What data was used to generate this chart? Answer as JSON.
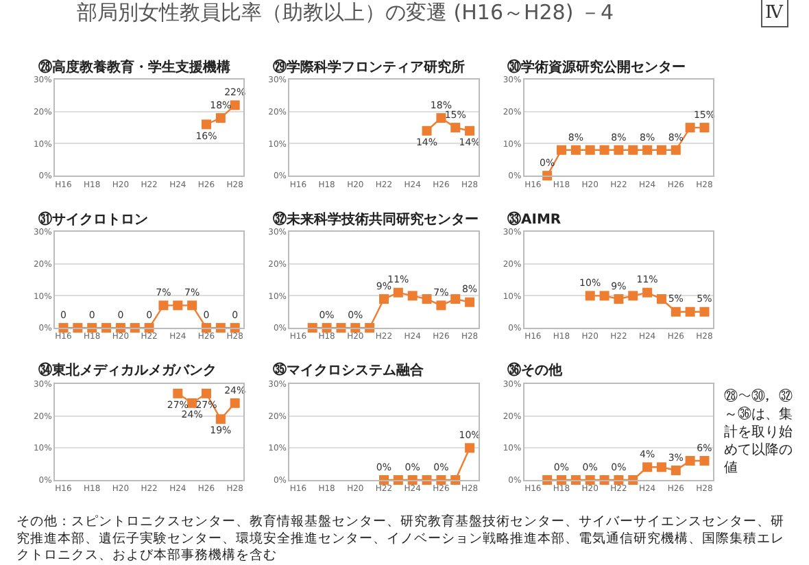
{
  "chart_data": [
    {
      "type": "line",
      "title": "㉘高度教養教育・学生支援機構",
      "categories": [
        "H16",
        null,
        "H18",
        null,
        "H20",
        null,
        "H22",
        null,
        "H24",
        null,
        "H26",
        null,
        "H28"
      ],
      "series": [
        {
          "color": "#ed7d31",
          "values": [
            null,
            null,
            null,
            null,
            null,
            null,
            null,
            null,
            null,
            null,
            16,
            18,
            22
          ],
          "value_labels": [
            null,
            null,
            null,
            null,
            null,
            null,
            null,
            null,
            null,
            null,
            "16%",
            "18%",
            "22%"
          ]
        }
      ],
      "ylim": [
        0,
        30
      ],
      "yticks": [
        {
          "value": 0,
          "label": "0%"
        },
        {
          "value": 10,
          "label": "10%"
        },
        {
          "value": 20,
          "label": "20%"
        },
        {
          "value": 30,
          "label": "30%"
        }
      ],
      "grid": "y",
      "marker": "square",
      "line_style": "solid"
    },
    {
      "type": "line",
      "title": "㉙学際科学フロンティア研究所",
      "categories": [
        "H16",
        null,
        "H18",
        null,
        "H20",
        null,
        "H22",
        null,
        "H24",
        null,
        "H26",
        null,
        "H28"
      ],
      "series": [
        {
          "color": "#ed7d31",
          "values": [
            null,
            null,
            null,
            null,
            null,
            null,
            null,
            null,
            null,
            14,
            18,
            15,
            14
          ],
          "value_labels": [
            null,
            null,
            null,
            null,
            null,
            null,
            null,
            null,
            null,
            "14%",
            "18%",
            "15%",
            "14%"
          ]
        }
      ],
      "ylim": [
        0,
        30
      ],
      "yticks": [
        {
          "value": 0,
          "label": "0%"
        },
        {
          "value": 10,
          "label": "10%"
        },
        {
          "value": 20,
          "label": "20%"
        },
        {
          "value": 30,
          "label": "30%"
        }
      ],
      "grid": "y",
      "marker": "square",
      "line_style": "solid"
    },
    {
      "type": "line",
      "title": "㉚学術資源研究公開センター",
      "categories": [
        "H16",
        null,
        "H18",
        null,
        "H20",
        null,
        "H22",
        null,
        "H24",
        null,
        "H26",
        null,
        "H28"
      ],
      "series": [
        {
          "color": "#ed7d31",
          "values": [
            null,
            0,
            8,
            8,
            8,
            8,
            8,
            8,
            8,
            8,
            8,
            15,
            15
          ],
          "value_labels": [
            null,
            "0%",
            null,
            "8%",
            null,
            null,
            "8%",
            null,
            "8%",
            null,
            "8%",
            null,
            "15%"
          ]
        }
      ],
      "ylim": [
        0,
        30
      ],
      "yticks": [
        {
          "value": 0,
          "label": "0%"
        },
        {
          "value": 10,
          "label": "10%"
        },
        {
          "value": 20,
          "label": "20%"
        },
        {
          "value": 30,
          "label": "30%"
        }
      ],
      "grid": "y",
      "marker": "square",
      "line_style": "solid"
    },
    {
      "type": "line",
      "title": "㉛サイクロトロン",
      "categories": [
        "H16",
        null,
        "H18",
        null,
        "H20",
        null,
        "H22",
        null,
        "H24",
        null,
        "H26",
        null,
        "H28"
      ],
      "series": [
        {
          "color": "#ed7d31",
          "values": [
            0,
            0,
            0,
            0,
            0,
            0,
            0,
            7,
            7,
            7,
            0,
            0,
            0
          ],
          "value_labels": [
            "0",
            null,
            "0",
            null,
            "0",
            null,
            "0",
            "7%",
            null,
            "7%",
            "0",
            null,
            "0"
          ]
        }
      ],
      "ylim": [
        0,
        30
      ],
      "yticks": [
        {
          "value": 0,
          "label": "0%"
        },
        {
          "value": 10,
          "label": "10%"
        },
        {
          "value": 20,
          "label": "20%"
        },
        {
          "value": 30,
          "label": "30%"
        }
      ],
      "grid": "y",
      "marker": "square",
      "line_style": "solid"
    },
    {
      "type": "line",
      "title": "㉜未来科学技術共同研究センター",
      "categories": [
        "H16",
        null,
        "H18",
        null,
        "H20",
        null,
        "H22",
        null,
        "H24",
        null,
        "H26",
        null,
        "H28"
      ],
      "series": [
        {
          "color": "#ed7d31",
          "values": [
            null,
            0,
            0,
            0,
            0,
            0,
            9,
            11,
            10,
            9,
            7,
            9,
            8
          ],
          "value_labels": [
            null,
            null,
            "0%",
            null,
            "0%",
            null,
            "9%",
            "11%",
            null,
            null,
            "7%",
            null,
            "8%"
          ]
        }
      ],
      "ylim": [
        0,
        30
      ],
      "yticks": [
        {
          "value": 0,
          "label": "0%"
        },
        {
          "value": 10,
          "label": "10%"
        },
        {
          "value": 20,
          "label": "20%"
        },
        {
          "value": 30,
          "label": "30%"
        }
      ],
      "grid": "y",
      "marker": "square",
      "line_style": "solid"
    },
    {
      "type": "line",
      "title": "㉝AIMR",
      "categories": [
        "H16",
        null,
        "H18",
        null,
        "H20",
        null,
        "H22",
        null,
        "H24",
        null,
        "H26",
        null,
        "H28"
      ],
      "series": [
        {
          "color": "#ed7d31",
          "values": [
            null,
            null,
            null,
            null,
            10,
            10,
            9,
            10,
            11,
            9,
            5,
            5,
            5
          ],
          "value_labels": [
            null,
            null,
            null,
            null,
            "10%",
            null,
            "9%",
            null,
            "11%",
            null,
            "5%",
            null,
            "5%"
          ]
        }
      ],
      "ylim": [
        0,
        30
      ],
      "yticks": [
        {
          "value": 0,
          "label": "0%"
        },
        {
          "value": 10,
          "label": "10%"
        },
        {
          "value": 20,
          "label": "20%"
        },
        {
          "value": 30,
          "label": "30%"
        }
      ],
      "grid": "y",
      "marker": "square",
      "line_style": "solid"
    },
    {
      "type": "line",
      "title": "㉞東北メディカルメガバンク",
      "categories": [
        "H16",
        null,
        "H18",
        null,
        "H20",
        null,
        "H22",
        null,
        "H24",
        null,
        "H26",
        null,
        "H28"
      ],
      "series": [
        {
          "color": "#ed7d31",
          "values": [
            null,
            null,
            null,
            null,
            null,
            null,
            null,
            null,
            27,
            24,
            27,
            19,
            24
          ],
          "value_labels": [
            null,
            null,
            null,
            null,
            null,
            null,
            null,
            null,
            "27%",
            "24%",
            "27%",
            "19%",
            "24%"
          ]
        }
      ],
      "ylim": [
        0,
        30
      ],
      "yticks": [
        {
          "value": 0,
          "label": "0%"
        },
        {
          "value": 10,
          "label": "10%"
        },
        {
          "value": 20,
          "label": "20%"
        },
        {
          "value": 30,
          "label": "30%"
        }
      ],
      "grid": "y",
      "marker": "square",
      "line_style": "solid"
    },
    {
      "type": "line",
      "title": "㉟マイクロシステム融合",
      "categories": [
        "H16",
        null,
        "H18",
        null,
        "H20",
        null,
        "H22",
        null,
        "H24",
        null,
        "H26",
        null,
        "H28"
      ],
      "series": [
        {
          "color": "#ed7d31",
          "values": [
            null,
            null,
            null,
            null,
            null,
            null,
            0,
            0,
            0,
            0,
            0,
            0,
            10
          ],
          "value_labels": [
            null,
            null,
            null,
            null,
            null,
            null,
            "0%",
            null,
            "0%",
            null,
            "0%",
            null,
            "10%"
          ]
        }
      ],
      "ylim": [
        0,
        30
      ],
      "yticks": [
        {
          "value": 0,
          "label": "0%"
        },
        {
          "value": 10,
          "label": "10%"
        },
        {
          "value": 20,
          "label": "20%"
        },
        {
          "value": 30,
          "label": "30%"
        }
      ],
      "grid": "y",
      "marker": "square",
      "line_style": "solid"
    },
    {
      "type": "line",
      "title": "㊱その他",
      "categories": [
        "H16",
        null,
        "H18",
        null,
        "H20",
        null,
        "H22",
        null,
        "H24",
        null,
        "H26",
        null,
        "H28"
      ],
      "series": [
        {
          "color": "#ed7d31",
          "values": [
            null,
            0,
            0,
            0,
            0,
            0,
            0,
            0,
            4,
            4,
            3,
            6,
            6
          ],
          "value_labels": [
            null,
            null,
            "0%",
            null,
            "0%",
            null,
            "0%",
            null,
            "4%",
            null,
            "3%",
            null,
            "6%"
          ]
        }
      ],
      "ylim": [
        0,
        30
      ],
      "yticks": [
        {
          "value": 0,
          "label": "0%"
        },
        {
          "value": 10,
          "label": "10%"
        },
        {
          "value": 20,
          "label": "20%"
        },
        {
          "value": 30,
          "label": "30%"
        }
      ],
      "grid": "y",
      "marker": "square",
      "line_style": "solid"
    },
    {
      "type": "other",
      "title": "部局別女性教員比率（助教以上）の変遷 (H16～H28) －4",
      "annotations": [
        "Ⅳ",
        "㉘～㉚，㉜～㊱は、集計を取り始めて以降の値",
        "その他：スピントロニクスセンター、教育情報基盤センター、研究教育基盤技術センター、サイバーサイエンスセンター、研究推進本部、遺伝子実験センター、環境安全推進センター、イノベーション戦略推進本部、電気通信研究機構、国際集積エレクトロニクス、および本部事務機構を含む"
      ]
    }
  ]
}
